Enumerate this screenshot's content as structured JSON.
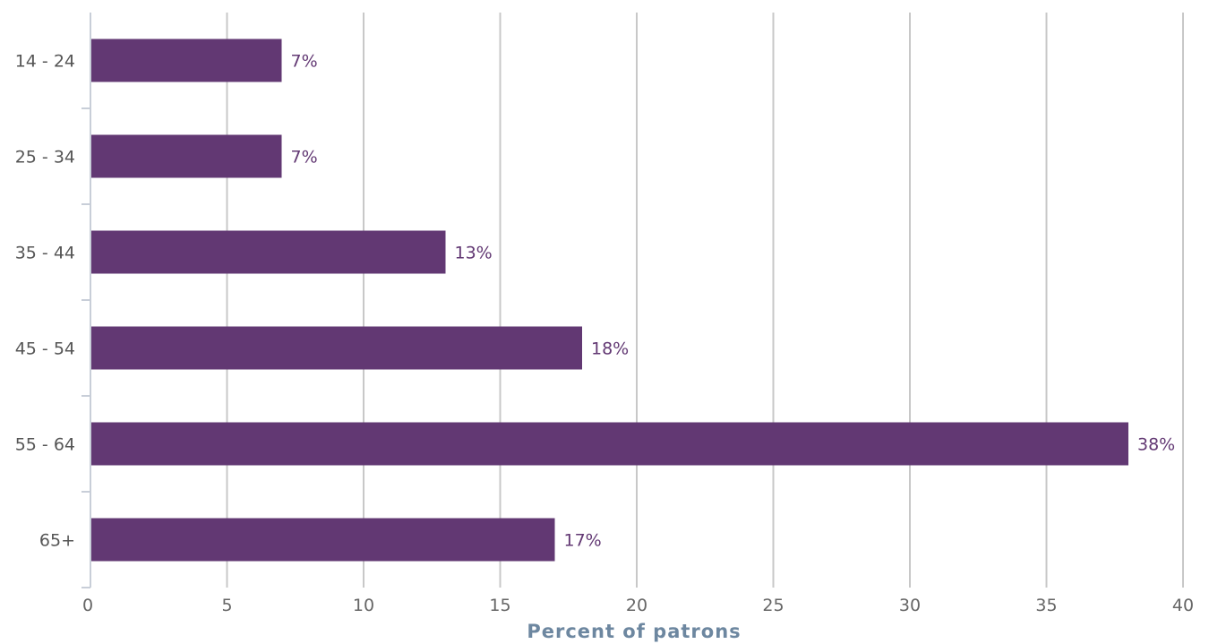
{
  "chart_data": {
    "type": "bar",
    "orientation": "horizontal",
    "categories": [
      "14 - 24",
      "25 - 34",
      "35 - 44",
      "45 - 54",
      "55 - 64",
      "65+"
    ],
    "values": [
      7,
      7,
      13,
      18,
      38,
      17
    ],
    "value_labels": [
      "7%",
      "7%",
      "13%",
      "18%",
      "38%",
      "17%"
    ],
    "xlabel": "Percent of patrons",
    "ylabel": "",
    "xlim": [
      0,
      40
    ],
    "xticks": [
      0,
      5,
      10,
      15,
      20,
      25,
      30,
      35,
      40
    ],
    "grid": "vertical",
    "legend": "none",
    "colors": {
      "bar": "#623873",
      "data_label": "#623873",
      "x_title": "#6d87a0",
      "grid": "#c8c8c8"
    }
  }
}
